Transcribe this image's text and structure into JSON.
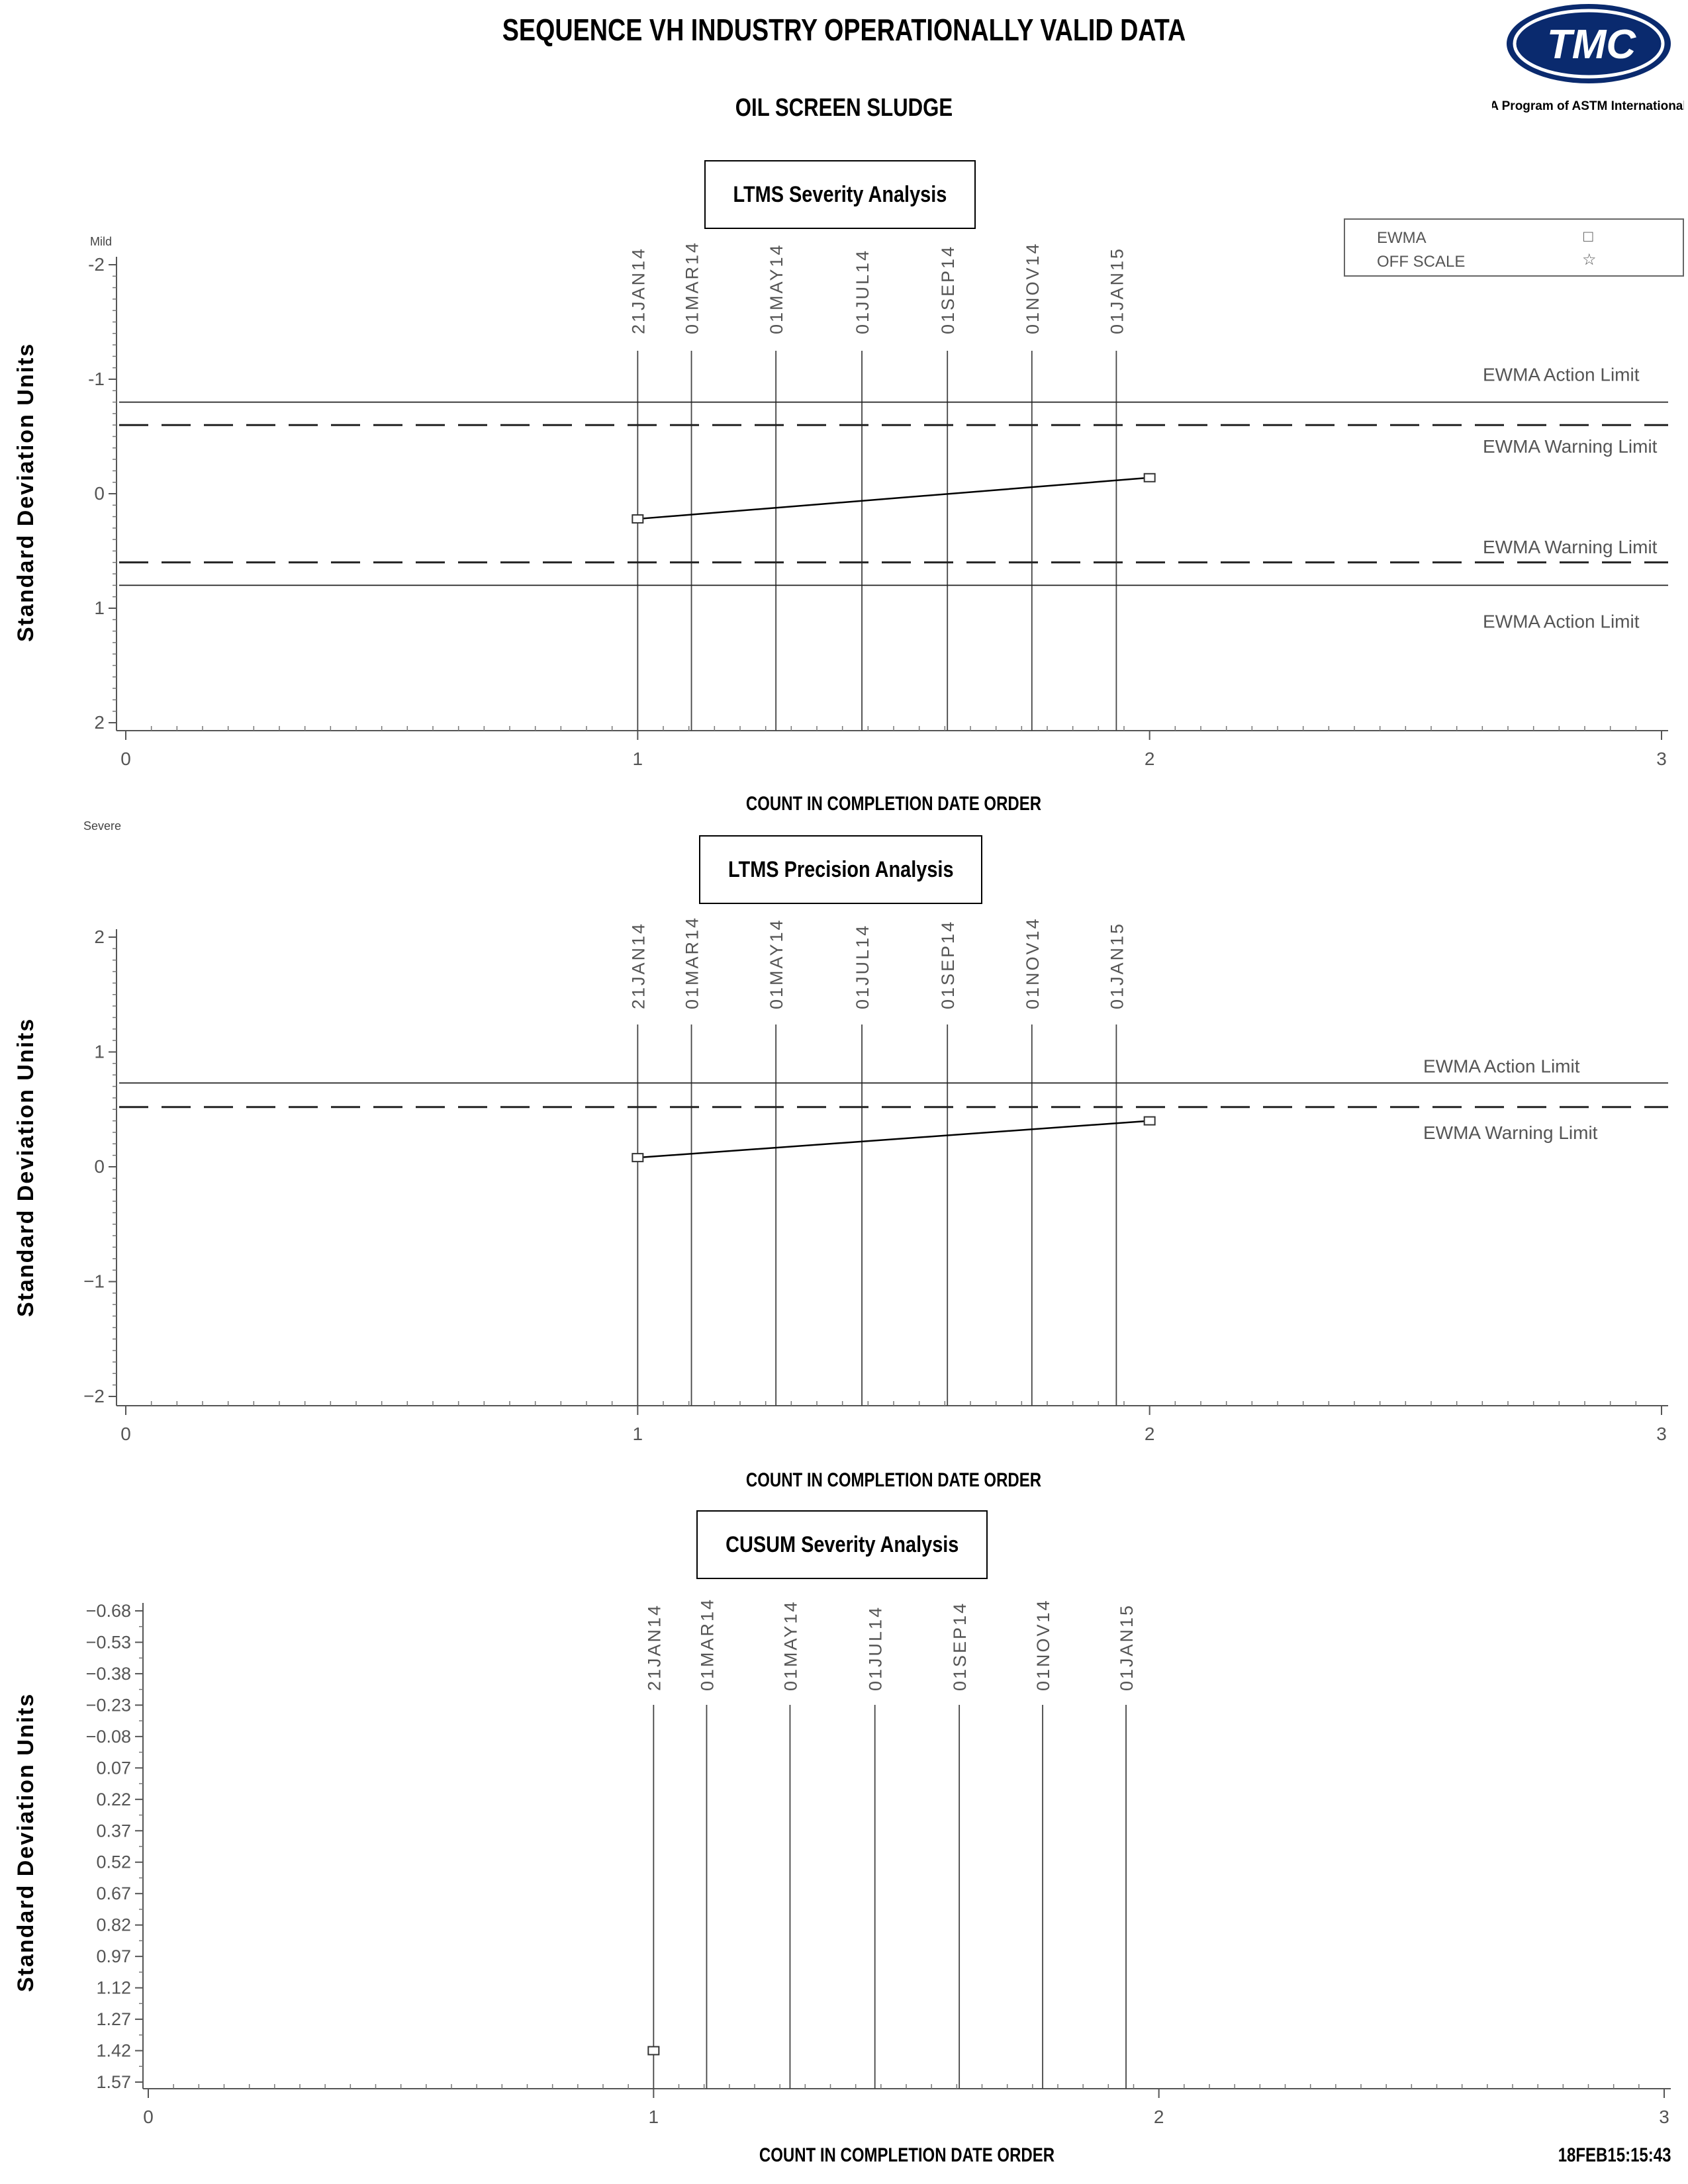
{
  "header": {
    "title": "SEQUENCE VH INDUSTRY OPERATIONALLY VALID DATA",
    "subtitle": "OIL SCREEN SLUDGE",
    "logo_text": "TMC",
    "logo_caption": "A Program of ASTM International",
    "timestamp": "18FEB15:15:43"
  },
  "legend": {
    "items": [
      {
        "label": "EWMA",
        "symbol": "□"
      },
      {
        "label": "OFF SCALE",
        "symbol": "☆"
      }
    ]
  },
  "labels": {
    "mild": "Mild",
    "severe": "Severe"
  },
  "chart_data": [
    {
      "type": "line",
      "title": "LTMS Severity Analysis",
      "xlabel": "COUNT IN COMPLETION DATE ORDER",
      "ylabel": "Standard Deviation Units",
      "xlim": [
        0,
        3
      ],
      "ylim": [
        -2,
        2
      ],
      "y_inverted": true,
      "y_ticks": [
        "-2",
        "-1",
        "0",
        "1",
        "2"
      ],
      "x_ticks": [
        "0",
        "1",
        "2",
        "3"
      ],
      "date_markers": [
        {
          "label": "21JAN14",
          "x": 1.0
        },
        {
          "label": "01MAR14",
          "x": 1.105
        },
        {
          "label": "01MAY14",
          "x": 1.27
        },
        {
          "label": "01JUL14",
          "x": 1.438
        },
        {
          "label": "01SEP14",
          "x": 1.605
        },
        {
          "label": "01NOV14",
          "x": 1.77
        },
        {
          "label": "01JAN15",
          "x": 1.935
        }
      ],
      "limits": [
        {
          "label": "EWMA Action Limit",
          "y": -0.8,
          "style": "solid"
        },
        {
          "label": "EWMA Warning Limit",
          "y": -0.6,
          "style": "dashed"
        },
        {
          "label": "EWMA Warning Limit",
          "y": 0.6,
          "style": "dashed"
        },
        {
          "label": "EWMA Action Limit",
          "y": 0.8,
          "style": "solid"
        }
      ],
      "series": [
        {
          "name": "EWMA",
          "x": [
            1,
            2
          ],
          "y": [
            0.22,
            -0.14
          ]
        }
      ]
    },
    {
      "type": "line",
      "title": "LTMS Precision Analysis",
      "xlabel": "COUNT IN COMPLETION DATE ORDER",
      "ylabel": "Standard Deviation Units",
      "xlim": [
        0,
        3
      ],
      "ylim": [
        -2,
        2
      ],
      "y_inverted": false,
      "y_ticks": [
        "2",
        "1",
        "0",
        "−1",
        "−2"
      ],
      "x_ticks": [
        "0",
        "1",
        "2",
        "3"
      ],
      "date_markers": [
        {
          "label": "21JAN14",
          "x": 1.0
        },
        {
          "label": "01MAR14",
          "x": 1.105
        },
        {
          "label": "01MAY14",
          "x": 1.27
        },
        {
          "label": "01JUL14",
          "x": 1.438
        },
        {
          "label": "01SEP14",
          "x": 1.605
        },
        {
          "label": "01NOV14",
          "x": 1.77
        },
        {
          "label": "01JAN15",
          "x": 1.935
        }
      ],
      "limits": [
        {
          "label": "EWMA Action Limit",
          "y": 0.73,
          "style": "solid"
        },
        {
          "label": "EWMA Warning Limit",
          "y": 0.52,
          "style": "dashed"
        }
      ],
      "series": [
        {
          "name": "EWMA",
          "x": [
            1,
            2
          ],
          "y": [
            0.08,
            0.4
          ]
        }
      ]
    },
    {
      "type": "scatter",
      "title": "CUSUM Severity Analysis",
      "xlabel": "COUNT IN COMPLETION DATE ORDER",
      "ylabel": "Standard Deviation Units",
      "xlim": [
        0,
        3
      ],
      "ylim": [
        -0.68,
        1.57
      ],
      "y_inverted": true,
      "y_ticks": [
        "−0.68",
        "−0.53",
        "−0.38",
        "−0.23",
        "−0.08",
        "0.07",
        "0.22",
        "0.37",
        "0.52",
        "0.67",
        "0.82",
        "0.97",
        "1.12",
        "1.27",
        "1.42",
        "1.57"
      ],
      "x_ticks": [
        "0",
        "1",
        "2",
        "3"
      ],
      "date_markers": [
        {
          "label": "21JAN14",
          "x": 1.0
        },
        {
          "label": "01MAR14",
          "x": 1.105
        },
        {
          "label": "01MAY14",
          "x": 1.27
        },
        {
          "label": "01JUL14",
          "x": 1.438
        },
        {
          "label": "01SEP14",
          "x": 1.605
        },
        {
          "label": "01NOV14",
          "x": 1.77
        },
        {
          "label": "01JAN15",
          "x": 1.935
        }
      ],
      "limits": [],
      "series": [
        {
          "name": "CUSUM",
          "x": [
            1
          ],
          "y": [
            1.42
          ]
        }
      ]
    }
  ]
}
